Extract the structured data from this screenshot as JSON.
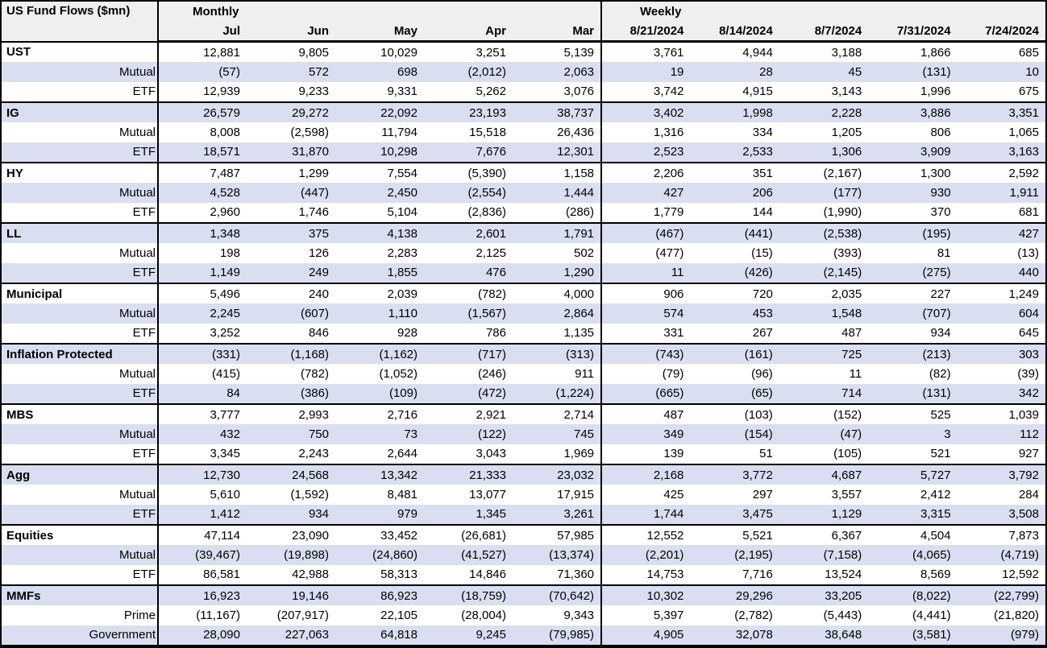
{
  "title": "US Fund Flows ($mn)",
  "colors": {
    "row_stripe": "#d9dff0",
    "header_bg": "#efefef",
    "border": "#000000",
    "text": "#000000"
  },
  "sections": {
    "monthly": {
      "label": "Monthly",
      "columns": [
        "Jul",
        "Jun",
        "May",
        "Apr",
        "Mar"
      ]
    },
    "weekly": {
      "label": "Weekly",
      "columns": [
        "8/21/2024",
        "8/14/2024",
        "8/7/2024",
        "7/31/2024",
        "7/24/2024"
      ]
    }
  },
  "groups": [
    {
      "label": "UST",
      "total": {
        "monthly": [
          "12,881",
          "9,805",
          "10,029",
          "3,251",
          "5,139"
        ],
        "weekly": [
          "3,761",
          "4,944",
          "3,188",
          "1,866",
          "685"
        ]
      },
      "subrows": [
        {
          "label": "Mutual",
          "monthly": [
            "(57)",
            "572",
            "698",
            "(2,012)",
            "2,063"
          ],
          "weekly": [
            "19",
            "28",
            "45",
            "(131)",
            "10"
          ]
        },
        {
          "label": "ETF",
          "monthly": [
            "12,939",
            "9,233",
            "9,331",
            "5,262",
            "3,076"
          ],
          "weekly": [
            "3,742",
            "4,915",
            "3,143",
            "1,996",
            "675"
          ]
        }
      ]
    },
    {
      "label": "IG",
      "total": {
        "monthly": [
          "26,579",
          "29,272",
          "22,092",
          "23,193",
          "38,737"
        ],
        "weekly": [
          "3,402",
          "1,998",
          "2,228",
          "3,886",
          "3,351"
        ]
      },
      "subrows": [
        {
          "label": "Mutual",
          "monthly": [
            "8,008",
            "(2,598)",
            "11,794",
            "15,518",
            "26,436"
          ],
          "weekly": [
            "1,316",
            "334",
            "1,205",
            "806",
            "1,065"
          ]
        },
        {
          "label": "ETF",
          "monthly": [
            "18,571",
            "31,870",
            "10,298",
            "7,676",
            "12,301"
          ],
          "weekly": [
            "2,523",
            "2,533",
            "1,306",
            "3,909",
            "3,163"
          ]
        }
      ]
    },
    {
      "label": "HY",
      "total": {
        "monthly": [
          "7,487",
          "1,299",
          "7,554",
          "(5,390)",
          "1,158"
        ],
        "weekly": [
          "2,206",
          "351",
          "(2,167)",
          "1,300",
          "2,592"
        ]
      },
      "subrows": [
        {
          "label": "Mutual",
          "monthly": [
            "4,528",
            "(447)",
            "2,450",
            "(2,554)",
            "1,444"
          ],
          "weekly": [
            "427",
            "206",
            "(177)",
            "930",
            "1,911"
          ]
        },
        {
          "label": "ETF",
          "monthly": [
            "2,960",
            "1,746",
            "5,104",
            "(2,836)",
            "(286)"
          ],
          "weekly": [
            "1,779",
            "144",
            "(1,990)",
            "370",
            "681"
          ]
        }
      ]
    },
    {
      "label": "LL",
      "total": {
        "monthly": [
          "1,348",
          "375",
          "4,138",
          "2,601",
          "1,791"
        ],
        "weekly": [
          "(467)",
          "(441)",
          "(2,538)",
          "(195)",
          "427"
        ]
      },
      "subrows": [
        {
          "label": "Mutual",
          "monthly": [
            "198",
            "126",
            "2,283",
            "2,125",
            "502"
          ],
          "weekly": [
            "(477)",
            "(15)",
            "(393)",
            "81",
            "(13)"
          ]
        },
        {
          "label": "ETF",
          "monthly": [
            "1,149",
            "249",
            "1,855",
            "476",
            "1,290"
          ],
          "weekly": [
            "11",
            "(426)",
            "(2,145)",
            "(275)",
            "440"
          ]
        }
      ]
    },
    {
      "label": "Municipal",
      "total": {
        "monthly": [
          "5,496",
          "240",
          "2,039",
          "(782)",
          "4,000"
        ],
        "weekly": [
          "906",
          "720",
          "2,035",
          "227",
          "1,249"
        ]
      },
      "subrows": [
        {
          "label": "Mutual",
          "monthly": [
            "2,245",
            "(607)",
            "1,110",
            "(1,567)",
            "2,864"
          ],
          "weekly": [
            "574",
            "453",
            "1,548",
            "(707)",
            "604"
          ]
        },
        {
          "label": "ETF",
          "monthly": [
            "3,252",
            "846",
            "928",
            "786",
            "1,135"
          ],
          "weekly": [
            "331",
            "267",
            "487",
            "934",
            "645"
          ]
        }
      ]
    },
    {
      "label": "Inflation Protected",
      "total": {
        "monthly": [
          "(331)",
          "(1,168)",
          "(1,162)",
          "(717)",
          "(313)"
        ],
        "weekly": [
          "(743)",
          "(161)",
          "725",
          "(213)",
          "303"
        ]
      },
      "subrows": [
        {
          "label": "Mutual",
          "monthly": [
            "(415)",
            "(782)",
            "(1,052)",
            "(246)",
            "911"
          ],
          "weekly": [
            "(79)",
            "(96)",
            "11",
            "(82)",
            "(39)"
          ]
        },
        {
          "label": "ETF",
          "monthly": [
            "84",
            "(386)",
            "(109)",
            "(472)",
            "(1,224)"
          ],
          "weekly": [
            "(665)",
            "(65)",
            "714",
            "(131)",
            "342"
          ]
        }
      ]
    },
    {
      "label": "MBS",
      "total": {
        "monthly": [
          "3,777",
          "2,993",
          "2,716",
          "2,921",
          "2,714"
        ],
        "weekly": [
          "487",
          "(103)",
          "(152)",
          "525",
          "1,039"
        ]
      },
      "subrows": [
        {
          "label": "Mutual",
          "monthly": [
            "432",
            "750",
            "73",
            "(122)",
            "745"
          ],
          "weekly": [
            "349",
            "(154)",
            "(47)",
            "3",
            "112"
          ]
        },
        {
          "label": "ETF",
          "monthly": [
            "3,345",
            "2,243",
            "2,644",
            "3,043",
            "1,969"
          ],
          "weekly": [
            "139",
            "51",
            "(105)",
            "521",
            "927"
          ]
        }
      ]
    },
    {
      "label": "Agg",
      "total": {
        "monthly": [
          "12,730",
          "24,568",
          "13,342",
          "21,333",
          "23,032"
        ],
        "weekly": [
          "2,168",
          "3,772",
          "4,687",
          "5,727",
          "3,792"
        ]
      },
      "subrows": [
        {
          "label": "Mutual",
          "monthly": [
            "5,610",
            "(1,592)",
            "8,481",
            "13,077",
            "17,915"
          ],
          "weekly": [
            "425",
            "297",
            "3,557",
            "2,412",
            "284"
          ]
        },
        {
          "label": "ETF",
          "monthly": [
            "1,412",
            "934",
            "979",
            "1,345",
            "3,261"
          ],
          "weekly": [
            "1,744",
            "3,475",
            "1,129",
            "3,315",
            "3,508"
          ]
        }
      ]
    },
    {
      "label": "Equities",
      "total": {
        "monthly": [
          "47,114",
          "23,090",
          "33,452",
          "(26,681)",
          "57,985"
        ],
        "weekly": [
          "12,552",
          "5,521",
          "6,367",
          "4,504",
          "7,873"
        ]
      },
      "subrows": [
        {
          "label": "Mutual",
          "monthly": [
            "(39,467)",
            "(19,898)",
            "(24,860)",
            "(41,527)",
            "(13,374)"
          ],
          "weekly": [
            "(2,201)",
            "(2,195)",
            "(7,158)",
            "(4,065)",
            "(4,719)"
          ]
        },
        {
          "label": "ETF",
          "monthly": [
            "86,581",
            "42,988",
            "58,313",
            "14,846",
            "71,360"
          ],
          "weekly": [
            "14,753",
            "7,716",
            "13,524",
            "8,569",
            "12,592"
          ]
        }
      ]
    },
    {
      "label": "MMFs",
      "total": {
        "monthly": [
          "16,923",
          "19,146",
          "86,923",
          "(18,759)",
          "(70,642)"
        ],
        "weekly": [
          "10,302",
          "29,296",
          "33,205",
          "(8,022)",
          "(22,799)"
        ]
      },
      "subrows": [
        {
          "label": "Prime",
          "monthly": [
            "(11,167)",
            "(207,917)",
            "22,105",
            "(28,004)",
            "9,343"
          ],
          "weekly": [
            "5,397",
            "(2,782)",
            "(5,443)",
            "(4,441)",
            "(21,820)"
          ]
        },
        {
          "label": "Government",
          "monthly": [
            "28,090",
            "227,063",
            "64,818",
            "9,245",
            "(79,985)"
          ],
          "weekly": [
            "4,905",
            "32,078",
            "38,648",
            "(3,581)",
            "(979)"
          ]
        }
      ]
    }
  ]
}
